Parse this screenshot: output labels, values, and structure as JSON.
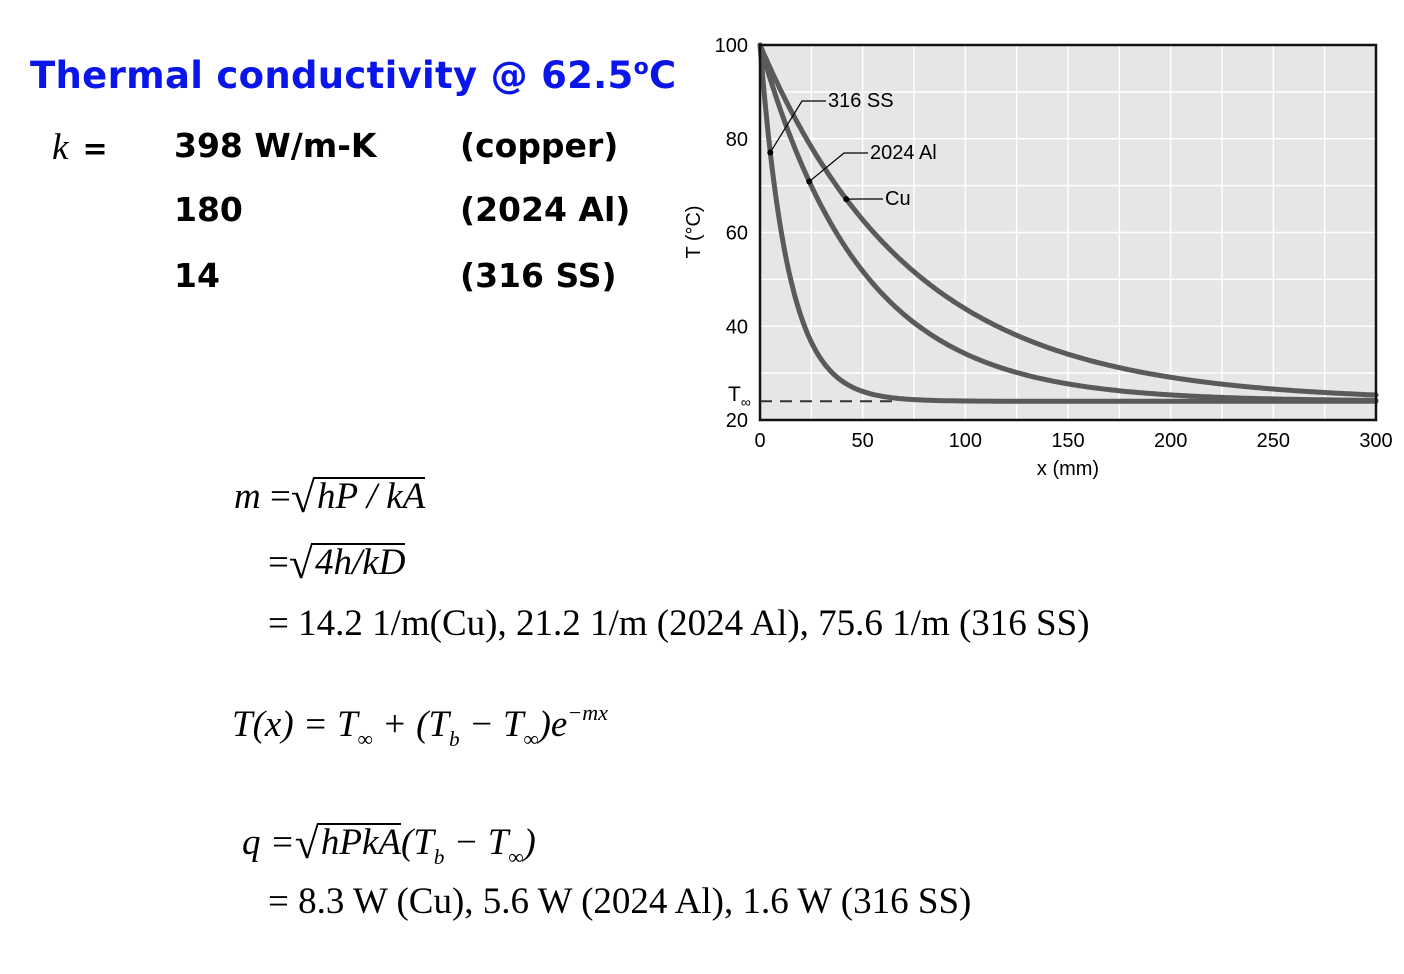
{
  "header": {
    "title": "Thermal conductivity @ 62.5",
    "title_sup": "o",
    "title_suffix": "C"
  },
  "k_table": {
    "symbol": "k",
    "equals": "=",
    "rows": [
      {
        "value": "398 W/m-K",
        "material": "(copper)"
      },
      {
        "value": "180",
        "material": "(2024 Al)"
      },
      {
        "value": "14",
        "material": "(316 SS)"
      }
    ]
  },
  "equations": {
    "m_def": {
      "lhs": "m",
      "eq": "=",
      "radicand": "hP / kA"
    },
    "m_alt": {
      "eq": "=",
      "radicand": "4h/kD"
    },
    "m_values": "=  14.2 1/m(Cu),   21.2 1/m (2024 Al),  75.6 1/m (316 SS)",
    "T_lhs": "T(x) = T",
    "T_plus": " + (T",
    "T_minus": " − T",
    "T_close": ")e",
    "T_exp": "−mx",
    "sub_inf": "∞",
    "sub_b": "b",
    "q_lhs": "q =",
    "q_radicand": "hPkA",
    "q_open": "(T",
    "q_minus": " − T",
    "q_close": ")",
    "q_values": "=  8.3 W (Cu),  5.6 W (2024 Al),  1.6 W (316 SS)"
  },
  "chart_data": {
    "type": "line",
    "xlabel": "x (mm)",
    "ylabel": "T (°C)",
    "xlim": [
      0,
      300
    ],
    "ylim": [
      20,
      100
    ],
    "x_ticks": [
      0,
      50,
      100,
      150,
      200,
      250,
      300
    ],
    "y_ticks": [
      20,
      40,
      60,
      80,
      100
    ],
    "grid": true,
    "T_inf": 24,
    "T_inf_label": "T∞",
    "series": [
      {
        "name": "316 SS",
        "m": 75.6,
        "x": [
          0,
          5,
          10,
          15,
          20,
          30,
          40,
          50,
          60,
          80,
          100,
          150,
          200,
          250,
          300
        ],
        "y": [
          100,
          76,
          59,
          47,
          41,
          32,
          28,
          26,
          25,
          24,
          24,
          24,
          24,
          24,
          24
        ]
      },
      {
        "name": "2024 Al",
        "m": 21.2,
        "x": [
          0,
          10,
          20,
          30,
          40,
          50,
          60,
          80,
          100,
          150,
          200,
          250,
          300
        ],
        "y": [
          100,
          85,
          73,
          64,
          56,
          50,
          46,
          39,
          34,
          28,
          25.5,
          24.5,
          24
        ]
      },
      {
        "name": "Cu",
        "m": 14.2,
        "x": [
          0,
          10,
          20,
          30,
          40,
          50,
          60,
          80,
          100,
          150,
          200,
          250,
          300
        ],
        "y": [
          100,
          89,
          79,
          72,
          65,
          59,
          54,
          46,
          41,
          32,
          27.5,
          25.5,
          25
        ]
      }
    ],
    "annotations": [
      {
        "label": "316 SS",
        "at_x": 5,
        "at_y": 76
      },
      {
        "label": "2024 Al",
        "at_x": 24,
        "at_y": 66
      },
      {
        "label": "Cu",
        "at_x": 42,
        "at_y": 63
      }
    ],
    "colors": {
      "line": "#5a5a5a",
      "plot_bg": "#e6e6e6",
      "grid": "#ffffff",
      "title": "#0a16e8"
    }
  }
}
